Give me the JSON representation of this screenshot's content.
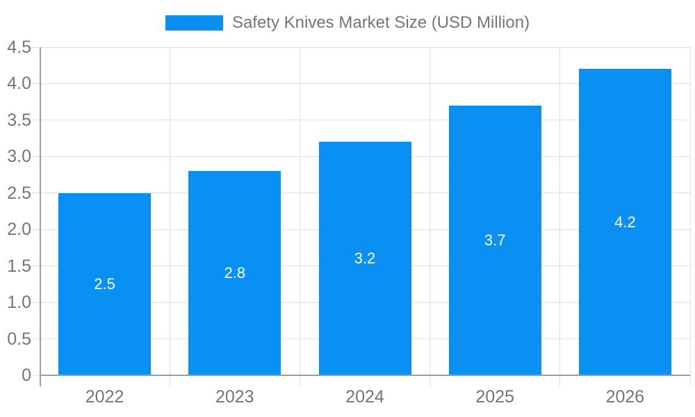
{
  "chart_data": {
    "type": "bar",
    "title": "Safety Knives Market Size (USD Million)",
    "legend": {
      "position": "top",
      "entries": [
        "Safety Knives Market Size (USD Million)"
      ]
    },
    "categories": [
      "2022",
      "2023",
      "2024",
      "2025",
      "2026"
    ],
    "series": [
      {
        "name": "Safety Knives Market Size (USD Million)",
        "values": [
          2.5,
          2.8,
          3.2,
          3.7,
          4.2
        ]
      }
    ],
    "data_labels": [
      "2.5",
      "2.8",
      "3.2",
      "3.7",
      "4.2"
    ],
    "xlabel": "",
    "ylabel": "",
    "ylim": [
      0,
      4.5
    ],
    "ytick_step": 0.5,
    "ytick_labels": [
      "4.5",
      "4.0",
      "3.5",
      "3.0",
      "2.5",
      "2.0",
      "1.5",
      "1.0",
      "0.5",
      "0"
    ],
    "grid": true,
    "colors": {
      "bar": "#0a90f2",
      "bar_label": "#ffffff",
      "axis_text": "#757575",
      "gridline": "#e0e0e0",
      "axis_line": "#9e9e9e",
      "background": "#ffffff"
    }
  }
}
